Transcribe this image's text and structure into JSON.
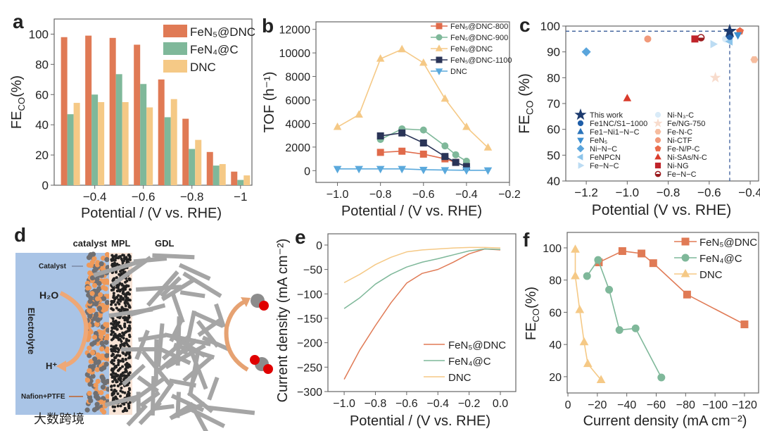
{
  "panel_labels": [
    "a",
    "b",
    "c",
    "d",
    "e",
    "f"
  ],
  "watermark": "大数跨境",
  "colors": {
    "fen5": "#e07a55",
    "fen4": "#7fb89a",
    "dnc": "#f5c986",
    "c800": "#e06a4a",
    "c900": "#7fb89a",
    "c1100": "#2a3457",
    "dncb": "#5aa9dc"
  },
  "chart_data": [
    {
      "panel": "a",
      "type": "bar",
      "xlabel": "Potential / (V vs. RHE)",
      "ylabel": [
        "FE",
        "CO",
        "(%)"
      ],
      "categories": [
        -0.3,
        -0.4,
        -0.5,
        -0.6,
        -0.7,
        -0.8,
        -0.9,
        -1.0
      ],
      "xticks": [
        -0.4,
        -0.6,
        -0.8,
        -1.0
      ],
      "xtick_labels": [
        "−0.4",
        "−0.6",
        "−0.8",
        "−1"
      ],
      "yticks": [
        0,
        20,
        40,
        60,
        80,
        100
      ],
      "ytick_labels": [
        "0",
        "20",
        "40",
        "60",
        "80",
        "100"
      ],
      "xlim": [
        -0.233,
        -1.047
      ],
      "ylim": [
        0,
        110
      ],
      "legend": "top-right",
      "series": [
        {
          "name": "FeN₅@DNC",
          "color": "#e07a55",
          "values": [
            98,
            99,
            97.5,
            93,
            70,
            44,
            22,
            9
          ]
        },
        {
          "name": "FeN₄@C",
          "color": "#7fb89a",
          "values": [
            47,
            60,
            73.5,
            67,
            45,
            24,
            13,
            3.5
          ]
        },
        {
          "name": "DNC",
          "color": "#f5c986",
          "values": [
            54.5,
            55,
            55,
            51.5,
            57,
            30,
            14,
            6.5
          ]
        }
      ]
    },
    {
      "panel": "b",
      "type": "line",
      "xlabel": "Potential / (V vs. RHE)",
      "ylabel": "TOF (h⁻¹)",
      "xticks": [
        -1.0,
        -0.8,
        -0.6,
        -0.4,
        -0.2
      ],
      "xtick_labels": [
        "−1.0",
        "−0.8",
        "−0.6",
        "−0.4",
        "−0.2"
      ],
      "yticks": [
        0,
        2000,
        4000,
        6000,
        8000,
        10000,
        12000
      ],
      "ytick_labels": [
        "0",
        "2000",
        "4000",
        "6000",
        "8000",
        "10000",
        "12000"
      ],
      "xlim": [
        -1.1,
        -0.2
      ],
      "ylim": [
        -1000,
        12640
      ],
      "legend": "top-right",
      "series": [
        {
          "name": "FeN₅@DNC-800",
          "color": "#e06a4a",
          "marker": "square",
          "x": [
            -0.8,
            -0.7,
            -0.6,
            -0.5,
            -0.45
          ],
          "y": [
            1550,
            1650,
            1400,
            1000,
            700
          ]
        },
        {
          "name": "FeN₅@DNC-900",
          "color": "#7fb89a",
          "marker": "circle",
          "x": [
            -0.8,
            -0.7,
            -0.6,
            -0.5,
            -0.45,
            -0.4
          ],
          "y": [
            2650,
            3550,
            3450,
            2100,
            1350,
            800
          ]
        },
        {
          "name": "FeN₅@DNC",
          "color": "#f5c986",
          "marker": "triangle",
          "x": [
            -1.0,
            -0.9,
            -0.8,
            -0.7,
            -0.6,
            -0.5,
            -0.4,
            -0.3
          ],
          "y": [
            3700,
            4750,
            9500,
            10300,
            9150,
            6100,
            3700,
            1950
          ]
        },
        {
          "name": "FeN₅@DNC-1100",
          "color": "#2a3457",
          "marker": "square",
          "x": [
            -0.8,
            -0.7,
            -0.6,
            -0.5,
            -0.45,
            -0.4
          ],
          "y": [
            2950,
            3200,
            2350,
            1200,
            700,
            350
          ]
        },
        {
          "name": "DNC",
          "color": "#5aa9dc",
          "marker": "tri-down",
          "x": [
            -1.0,
            -0.9,
            -0.8,
            -0.7,
            -0.6,
            -0.5,
            -0.4,
            -0.3
          ],
          "y": [
            150,
            150,
            150,
            150,
            80,
            50,
            30,
            30
          ]
        }
      ]
    },
    {
      "panel": "c",
      "type": "scatter",
      "xlabel": "Potential (V vs. RHE)",
      "ylabel": [
        "FE",
        "CO",
        " (%)"
      ],
      "xticks": [
        -1.2,
        -1.0,
        -0.8,
        -0.6,
        -0.4
      ],
      "xtick_labels": [
        "−1.2",
        "−1.0",
        "−0.8",
        "−0.6",
        "−0.4"
      ],
      "yticks": [
        40,
        50,
        60,
        70,
        80,
        90,
        100
      ],
      "ytick_labels": [
        "40",
        "50",
        "60",
        "70",
        "80",
        "90",
        "100"
      ],
      "xlim": [
        -1.3,
        -0.359
      ],
      "ylim": [
        40,
        100
      ],
      "reference": {
        "x": -0.5,
        "y": 98
      },
      "legend": "bottom-left",
      "series": [
        {
          "name": "This work",
          "color": "#1c3a6e",
          "marker": "star",
          "x": -0.5,
          "y": 98
        },
        {
          "name": "Fe1NC/S1−1000",
          "color": "#1f5ea8",
          "marker": "circle",
          "x": -0.5,
          "y": 96
        },
        {
          "name": "Fe1−Ni1−N−C",
          "color": "#2b74bb",
          "marker": "triangle",
          "x": -0.5,
          "y": 97
        },
        {
          "name": "FeN₅",
          "color": "#3d8fd0",
          "marker": "tri-down",
          "x": -0.46,
          "y": 96.5
        },
        {
          "name": "Ni−N−C",
          "color": "#5aa5dc",
          "marker": "diamond",
          "x": -1.2,
          "y": 90
        },
        {
          "name": "FeNPCN",
          "color": "#8cc4ea",
          "marker": "tri-left",
          "x": -0.5,
          "y": 94
        },
        {
          "name": "Fe−N−C",
          "color": "#bcdcf3",
          "marker": "tri-right",
          "x": -0.58,
          "y": 93
        },
        {
          "name": "Ni-N₃-C",
          "color": "#d9ebf8",
          "marker": "circle",
          "x": -0.52,
          "y": 95
        },
        {
          "name": "Fe/NG-750",
          "color": "#f8dccd",
          "marker": "star",
          "x": -0.57,
          "y": 80
        },
        {
          "name": "Fe-N-C",
          "color": "#f6bc9e",
          "marker": "hexagon",
          "x": -0.38,
          "y": 87
        },
        {
          "name": "Ni-CTF",
          "color": "#f19a7b",
          "marker": "circle",
          "x": -0.9,
          "y": 95
        },
        {
          "name": "Fe-N/P-C",
          "color": "#ea6a4a",
          "marker": "pentagon",
          "x": -0.45,
          "y": 98
        },
        {
          "name": "Ni-SAs/N-C",
          "color": "#d93b2b",
          "marker": "triangle",
          "x": -1.0,
          "y": 72
        },
        {
          "name": "Ni-NG",
          "color": "#c0242a",
          "marker": "square",
          "x": -0.67,
          "y": 95
        },
        {
          "name": "Fe−N−C",
          "color": "#9b1b1e",
          "marker": "halfcircle",
          "x": -0.64,
          "y": 95.5
        }
      ]
    },
    {
      "panel": "e",
      "type": "line",
      "xlabel": "Potential / (V vs. RHE)",
      "ylabel": "Current density (mA cm⁻²)",
      "xticks": [
        -1.0,
        -0.8,
        -0.6,
        -0.4,
        -0.2,
        0.0
      ],
      "xtick_labels": [
        "−1.0",
        "−0.8",
        "−0.6",
        "−0.4",
        "−0.2",
        "0.0"
      ],
      "yticks": [
        0,
        -50,
        -100,
        -150,
        -200,
        -250,
        -300
      ],
      "ytick_labels": [
        "0",
        "−50",
        "−100",
        "−150",
        "−200",
        "−250",
        "−300"
      ],
      "xlim": [
        -1.104,
        0.099
      ],
      "ylim": [
        -300,
        23
      ],
      "legend": "bottom-right",
      "series": [
        {
          "name": "FeN₅@DNC",
          "color": "#e07a55",
          "x": [
            -1,
            -0.9,
            -0.8,
            -0.7,
            -0.6,
            -0.5,
            -0.4,
            -0.3,
            -0.2,
            -0.1,
            0
          ],
          "y": [
            -275,
            -215,
            -165,
            -118,
            -78,
            -58,
            -50,
            -35,
            -18,
            -8,
            -10
          ]
        },
        {
          "name": "FeN₄@C",
          "color": "#7fb89a",
          "x": [
            -1,
            -0.9,
            -0.8,
            -0.7,
            -0.6,
            -0.5,
            -0.4,
            -0.3,
            -0.2,
            -0.1,
            0
          ],
          "y": [
            -130,
            -108,
            -80,
            -60,
            -45,
            -35,
            -28,
            -20,
            -12,
            -8,
            -9
          ]
        },
        {
          "name": "DNC",
          "color": "#f5c986",
          "x": [
            -1,
            -0.9,
            -0.8,
            -0.7,
            -0.6,
            -0.5,
            -0.4,
            -0.3,
            -0.2,
            -0.1,
            0
          ],
          "y": [
            -77,
            -60,
            -40,
            -25,
            -14,
            -10,
            -8,
            -6,
            -5,
            -5,
            -6
          ]
        }
      ]
    },
    {
      "panel": "f",
      "type": "line",
      "xlabel": "Current density (mA cm⁻²)",
      "ylabel": [
        "FE",
        "CO",
        "(%)"
      ],
      "xticks": [
        0,
        -20,
        -40,
        -60,
        -80,
        -100,
        -120
      ],
      "xtick_labels": [
        "0",
        "−20",
        "−40",
        "−60",
        "−80",
        "−100",
        "−120"
      ],
      "yticks": [
        20,
        40,
        60,
        80,
        100
      ],
      "ytick_labels": [
        "20",
        "40",
        "60",
        "80",
        "100"
      ],
      "xlim": [
        0.5,
        -129.6
      ],
      "ylim": [
        9.9,
        109.6
      ],
      "legend": "top-right",
      "series": [
        {
          "name": "FeN₅@DNC",
          "color": "#e07a55",
          "marker": "square",
          "x": [
            -21,
            -37,
            -50,
            -58,
            -81,
            -120
          ],
          "y": [
            91,
            98,
            96.5,
            90.5,
            71,
            52.5
          ]
        },
        {
          "name": "FeN₄@C",
          "color": "#7fb89a",
          "marker": "circle",
          "x": [
            -13,
            -20.5,
            -28,
            -35,
            -46,
            -63.5
          ],
          "y": [
            82.5,
            92.5,
            74,
            49,
            50,
            19.5
          ]
        },
        {
          "name": "DNC",
          "color": "#f5c986",
          "marker": "triangle",
          "x": [
            -5,
            -5,
            -8,
            -11,
            -13.5,
            -22.5
          ],
          "y": [
            99,
            82.5,
            61.5,
            41.5,
            28,
            18
          ]
        }
      ]
    }
  ],
  "diagram": {
    "layer_catalyst": "catalyst",
    "layer_mpl": "MPL",
    "layer_gdl": "GDL",
    "catalyst_pointer": "Catalyst",
    "reactant": "H₂O",
    "product": "H⁺",
    "electrolyte": "Electrolyte",
    "binder": "Nafion+PTFE"
  }
}
